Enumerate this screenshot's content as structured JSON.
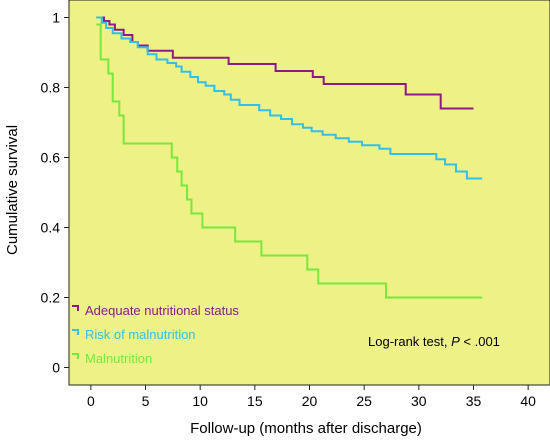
{
  "chart_data": {
    "type": "line",
    "chart_subtype": "kaplan-meier step survival curves",
    "title": "",
    "xlabel": "Follow-up (months after discharge)",
    "ylabel": "Cumulative survival",
    "xlim": [
      -2,
      42
    ],
    "ylim": [
      -0.05,
      1.05
    ],
    "xticks": [
      0,
      5,
      10,
      15,
      20,
      25,
      30,
      35,
      40
    ],
    "yticks": [
      0,
      0.2,
      0.4,
      0.6,
      0.8,
      1
    ],
    "ytick_labels": [
      "0",
      "0.2",
      "0.4",
      "0.6",
      "0.8",
      "1"
    ],
    "grid": false,
    "plot_background": "#eef185",
    "legend_position": "bottom-left",
    "annotation": {
      "text_prefix": "Log-rank test, ",
      "p_symbol": "P",
      "text_suffix": " < .001"
    },
    "series": [
      {
        "name": "Adequate nutritional status",
        "color": "#8e1b85",
        "points": [
          [
            0.5,
            1.0
          ],
          [
            1.2,
            1.0
          ],
          [
            1.2,
            0.99
          ],
          [
            1.7,
            0.99
          ],
          [
            1.7,
            0.98
          ],
          [
            2.2,
            0.98
          ],
          [
            2.2,
            0.965
          ],
          [
            3.0,
            0.965
          ],
          [
            3.0,
            0.95
          ],
          [
            3.8,
            0.95
          ],
          [
            3.8,
            0.93
          ],
          [
            4.3,
            0.93
          ],
          [
            4.3,
            0.92
          ],
          [
            5.2,
            0.92
          ],
          [
            5.2,
            0.905
          ],
          [
            7.5,
            0.905
          ],
          [
            7.5,
            0.885
          ],
          [
            12.6,
            0.885
          ],
          [
            12.6,
            0.867
          ],
          [
            16.9,
            0.867
          ],
          [
            16.9,
            0.847
          ],
          [
            20.3,
            0.847
          ],
          [
            20.3,
            0.83
          ],
          [
            21.3,
            0.83
          ],
          [
            21.3,
            0.81
          ],
          [
            28.8,
            0.81
          ],
          [
            28.8,
            0.78
          ],
          [
            32.0,
            0.78
          ],
          [
            32.0,
            0.74
          ],
          [
            35.0,
            0.74
          ]
        ]
      },
      {
        "name": "Risk of malnutrition",
        "color": "#33bfe8",
        "points": [
          [
            0.5,
            1.0
          ],
          [
            1.0,
            1.0
          ],
          [
            1.0,
            0.985
          ],
          [
            1.4,
            0.985
          ],
          [
            1.4,
            0.97
          ],
          [
            2.0,
            0.97
          ],
          [
            2.0,
            0.955
          ],
          [
            2.8,
            0.955
          ],
          [
            2.8,
            0.94
          ],
          [
            3.6,
            0.94
          ],
          [
            3.6,
            0.93
          ],
          [
            4.3,
            0.93
          ],
          [
            4.3,
            0.915
          ],
          [
            5.2,
            0.915
          ],
          [
            5.2,
            0.895
          ],
          [
            6.0,
            0.895
          ],
          [
            6.0,
            0.88
          ],
          [
            7.0,
            0.88
          ],
          [
            7.0,
            0.87
          ],
          [
            7.8,
            0.87
          ],
          [
            7.8,
            0.86
          ],
          [
            8.3,
            0.86
          ],
          [
            8.3,
            0.845
          ],
          [
            9.1,
            0.845
          ],
          [
            9.1,
            0.83
          ],
          [
            9.8,
            0.83
          ],
          [
            9.8,
            0.815
          ],
          [
            10.5,
            0.815
          ],
          [
            10.5,
            0.805
          ],
          [
            11.3,
            0.805
          ],
          [
            11.3,
            0.79
          ],
          [
            12.2,
            0.79
          ],
          [
            12.2,
            0.78
          ],
          [
            12.8,
            0.78
          ],
          [
            12.8,
            0.765
          ],
          [
            13.6,
            0.765
          ],
          [
            13.6,
            0.75
          ],
          [
            15.4,
            0.75
          ],
          [
            15.4,
            0.735
          ],
          [
            16.4,
            0.735
          ],
          [
            16.4,
            0.72
          ],
          [
            17.4,
            0.72
          ],
          [
            17.4,
            0.71
          ],
          [
            18.4,
            0.71
          ],
          [
            18.4,
            0.695
          ],
          [
            19.4,
            0.695
          ],
          [
            19.4,
            0.685
          ],
          [
            20.2,
            0.685
          ],
          [
            20.2,
            0.675
          ],
          [
            21.2,
            0.675
          ],
          [
            21.2,
            0.665
          ],
          [
            22.4,
            0.665
          ],
          [
            22.4,
            0.655
          ],
          [
            23.6,
            0.655
          ],
          [
            23.6,
            0.645
          ],
          [
            24.8,
            0.645
          ],
          [
            24.8,
            0.635
          ],
          [
            26.4,
            0.635
          ],
          [
            26.4,
            0.625
          ],
          [
            27.4,
            0.625
          ],
          [
            27.4,
            0.61
          ],
          [
            31.6,
            0.61
          ],
          [
            31.6,
            0.595
          ],
          [
            32.4,
            0.595
          ],
          [
            32.4,
            0.58
          ],
          [
            33.4,
            0.58
          ],
          [
            33.4,
            0.56
          ],
          [
            34.4,
            0.56
          ],
          [
            34.4,
            0.54
          ],
          [
            35.8,
            0.54
          ]
        ]
      },
      {
        "name": "Malnutrition",
        "color": "#78e83e",
        "points": [
          [
            0.5,
            0.98
          ],
          [
            0.9,
            0.98
          ],
          [
            0.9,
            0.88
          ],
          [
            1.6,
            0.88
          ],
          [
            1.6,
            0.84
          ],
          [
            2.0,
            0.84
          ],
          [
            2.0,
            0.76
          ],
          [
            2.6,
            0.76
          ],
          [
            2.6,
            0.72
          ],
          [
            3.0,
            0.72
          ],
          [
            3.0,
            0.64
          ],
          [
            7.4,
            0.64
          ],
          [
            7.4,
            0.6
          ],
          [
            7.9,
            0.6
          ],
          [
            7.9,
            0.56
          ],
          [
            8.3,
            0.56
          ],
          [
            8.3,
            0.52
          ],
          [
            8.8,
            0.52
          ],
          [
            8.8,
            0.48
          ],
          [
            9.2,
            0.48
          ],
          [
            9.2,
            0.44
          ],
          [
            10.2,
            0.44
          ],
          [
            10.2,
            0.4
          ],
          [
            13.2,
            0.4
          ],
          [
            13.2,
            0.36
          ],
          [
            15.6,
            0.36
          ],
          [
            15.6,
            0.32
          ],
          [
            19.8,
            0.32
          ],
          [
            19.8,
            0.28
          ],
          [
            20.8,
            0.28
          ],
          [
            20.8,
            0.24
          ],
          [
            27.0,
            0.24
          ],
          [
            27.0,
            0.2
          ],
          [
            35.8,
            0.2
          ]
        ]
      }
    ]
  }
}
